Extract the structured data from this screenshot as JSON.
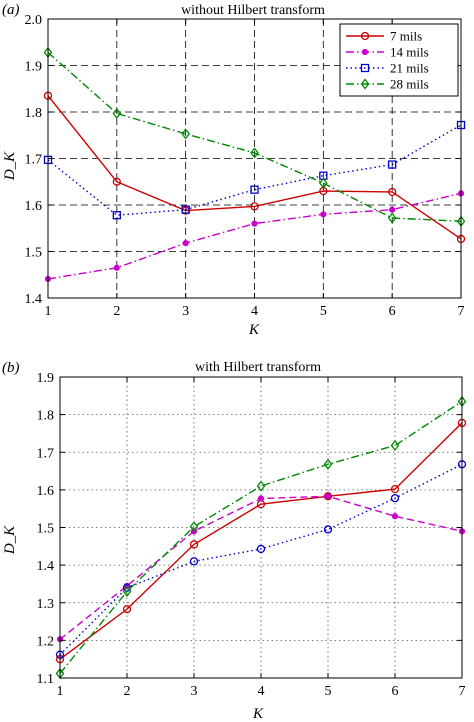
{
  "chart_data": [
    {
      "type": "line",
      "panel_label": "(a)",
      "title": "without Hilbert transform",
      "xlabel": "K",
      "ylabel": "D_K",
      "x": [
        1,
        2,
        3,
        4,
        5,
        6,
        7
      ],
      "xlim": [
        1,
        7
      ],
      "ylim": [
        1.4,
        2.0
      ],
      "xticks": [
        "1",
        "2",
        "3",
        "4",
        "5",
        "6",
        "7"
      ],
      "yticks": [
        "1.4",
        "1.5",
        "1.6",
        "1.7",
        "1.8",
        "1.9",
        "2.0"
      ],
      "grid": "dashed",
      "legend_position": "top-right",
      "series": [
        {
          "name": "7 mils",
          "color": "#cc0000",
          "dash": "solid",
          "marker": "circle",
          "values": [
            1.835,
            1.65,
            1.588,
            1.597,
            1.63,
            1.628,
            1.527
          ]
        },
        {
          "name": "14 mils",
          "color": "#cc00cc",
          "dash": "dashdot",
          "marker": "dot",
          "values": [
            1.441,
            1.465,
            1.518,
            1.56,
            1.58,
            1.59,
            1.625
          ]
        },
        {
          "name": "21 mils",
          "color": "#0000cc",
          "dash": "dotted",
          "marker": "square",
          "values": [
            1.697,
            1.578,
            1.59,
            1.633,
            1.663,
            1.687,
            1.772
          ]
        },
        {
          "name": "28 mils",
          "color": "#008800",
          "dash": "dashdot",
          "marker": "diamond",
          "values": [
            1.928,
            1.797,
            1.753,
            1.712,
            1.647,
            1.572,
            1.565
          ]
        }
      ]
    },
    {
      "type": "line",
      "panel_label": "(b)",
      "title": "with Hilbert transform",
      "xlabel": "K",
      "ylabel": "D_K",
      "x": [
        1,
        2,
        3,
        4,
        5,
        6,
        7
      ],
      "xlim": [
        1,
        7
      ],
      "ylim": [
        1.1,
        1.9
      ],
      "xticks": [
        "1",
        "2",
        "3",
        "4",
        "5",
        "6",
        "7"
      ],
      "yticks": [
        "1.1",
        "1.2",
        "1.3",
        "1.4",
        "1.5",
        "1.6",
        "1.7",
        "1.8",
        "1.9"
      ],
      "grid": "dotted",
      "series": [
        {
          "color": "#cc0000",
          "dash": "solid",
          "marker": "circle",
          "values": [
            1.15,
            1.283,
            1.455,
            1.562,
            1.583,
            1.602,
            1.778
          ]
        },
        {
          "color": "#cc00cc",
          "dash": "dashed",
          "marker": "dot",
          "values": [
            1.203,
            1.345,
            1.49,
            1.577,
            1.583,
            1.53,
            1.49
          ]
        },
        {
          "color": "#0000cc",
          "dash": "dotted",
          "marker": "circle",
          "values": [
            1.162,
            1.34,
            1.41,
            1.443,
            1.495,
            1.578,
            1.668
          ]
        },
        {
          "color": "#008800",
          "dash": "dashdot",
          "marker": "diamond",
          "values": [
            1.112,
            1.33,
            1.502,
            1.61,
            1.668,
            1.718,
            1.835
          ]
        }
      ]
    }
  ]
}
